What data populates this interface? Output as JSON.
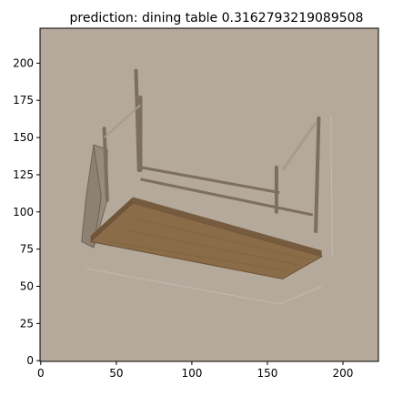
{
  "chart_data": {
    "type": "image",
    "title": "prediction: dining table 0.3162793219089508",
    "xlim": [
      -0.5,
      223.5
    ],
    "ylim": [
      223.5,
      -0.5
    ],
    "xticks": [
      0,
      50,
      100,
      150,
      200
    ],
    "yticks": [
      0,
      25,
      50,
      75,
      100,
      125,
      150,
      175,
      200
    ],
    "image": {
      "subject": "wooden desk with side storage bag",
      "background_color": "#b4a99a",
      "tabletop_color": "#8a6c48",
      "frame_color": "#7c6e60",
      "bag_color": "#8d8173",
      "marker_color": "#5e544a"
    }
  }
}
